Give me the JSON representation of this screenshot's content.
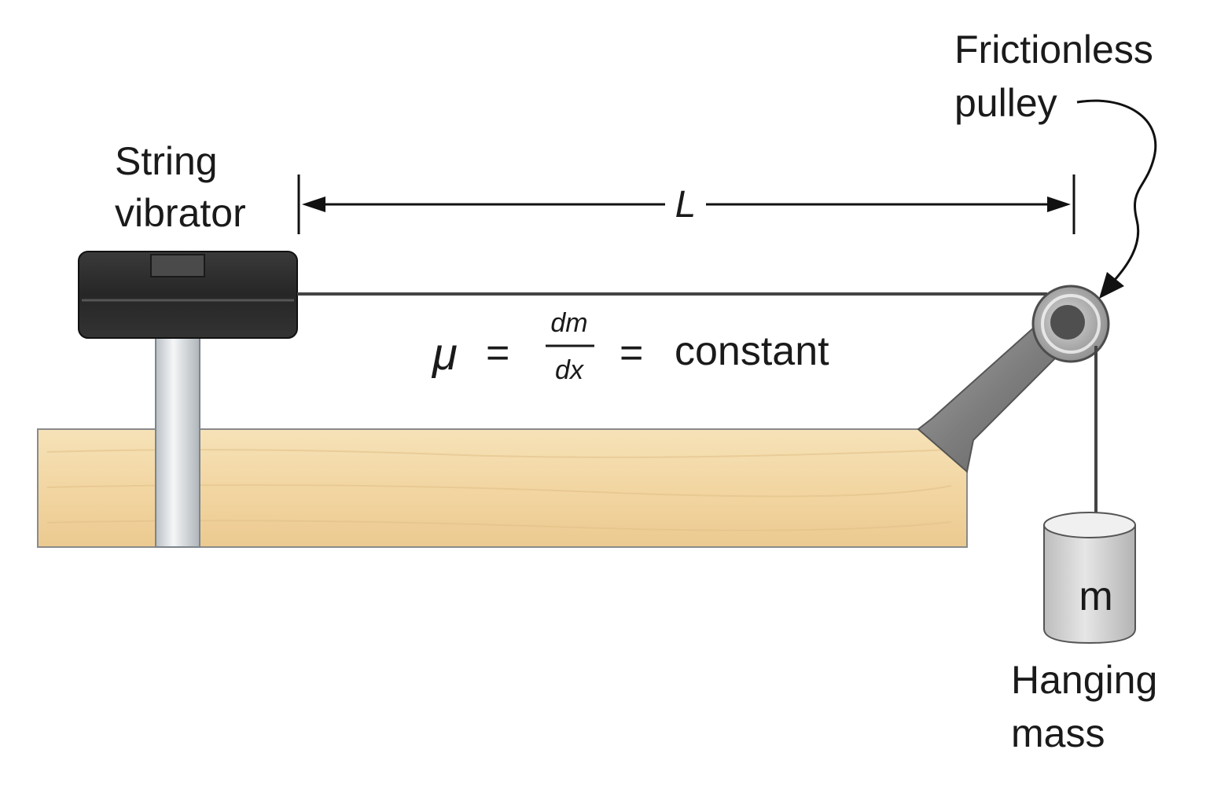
{
  "labels": {
    "vibrator_line1": "String",
    "vibrator_line2": "vibrator",
    "pulley_line1": "Frictionless",
    "pulley_line2": "pulley",
    "length": "L",
    "mass_symbol": "m",
    "hanging_line1": "Hanging",
    "hanging_line2": "mass"
  },
  "equation": {
    "mu": "μ",
    "equals1": "=",
    "numerator": "dm",
    "denominator": "dx",
    "equals2": "=",
    "constant": "constant"
  },
  "colors": {
    "table_wood": "#f2d8a6",
    "vibrator_body": "#2b2b2b",
    "post": "#dfe3e6",
    "string": "#444444",
    "pulley": "#9a9a9a",
    "mass_cylinder": "#d4d4d4"
  }
}
